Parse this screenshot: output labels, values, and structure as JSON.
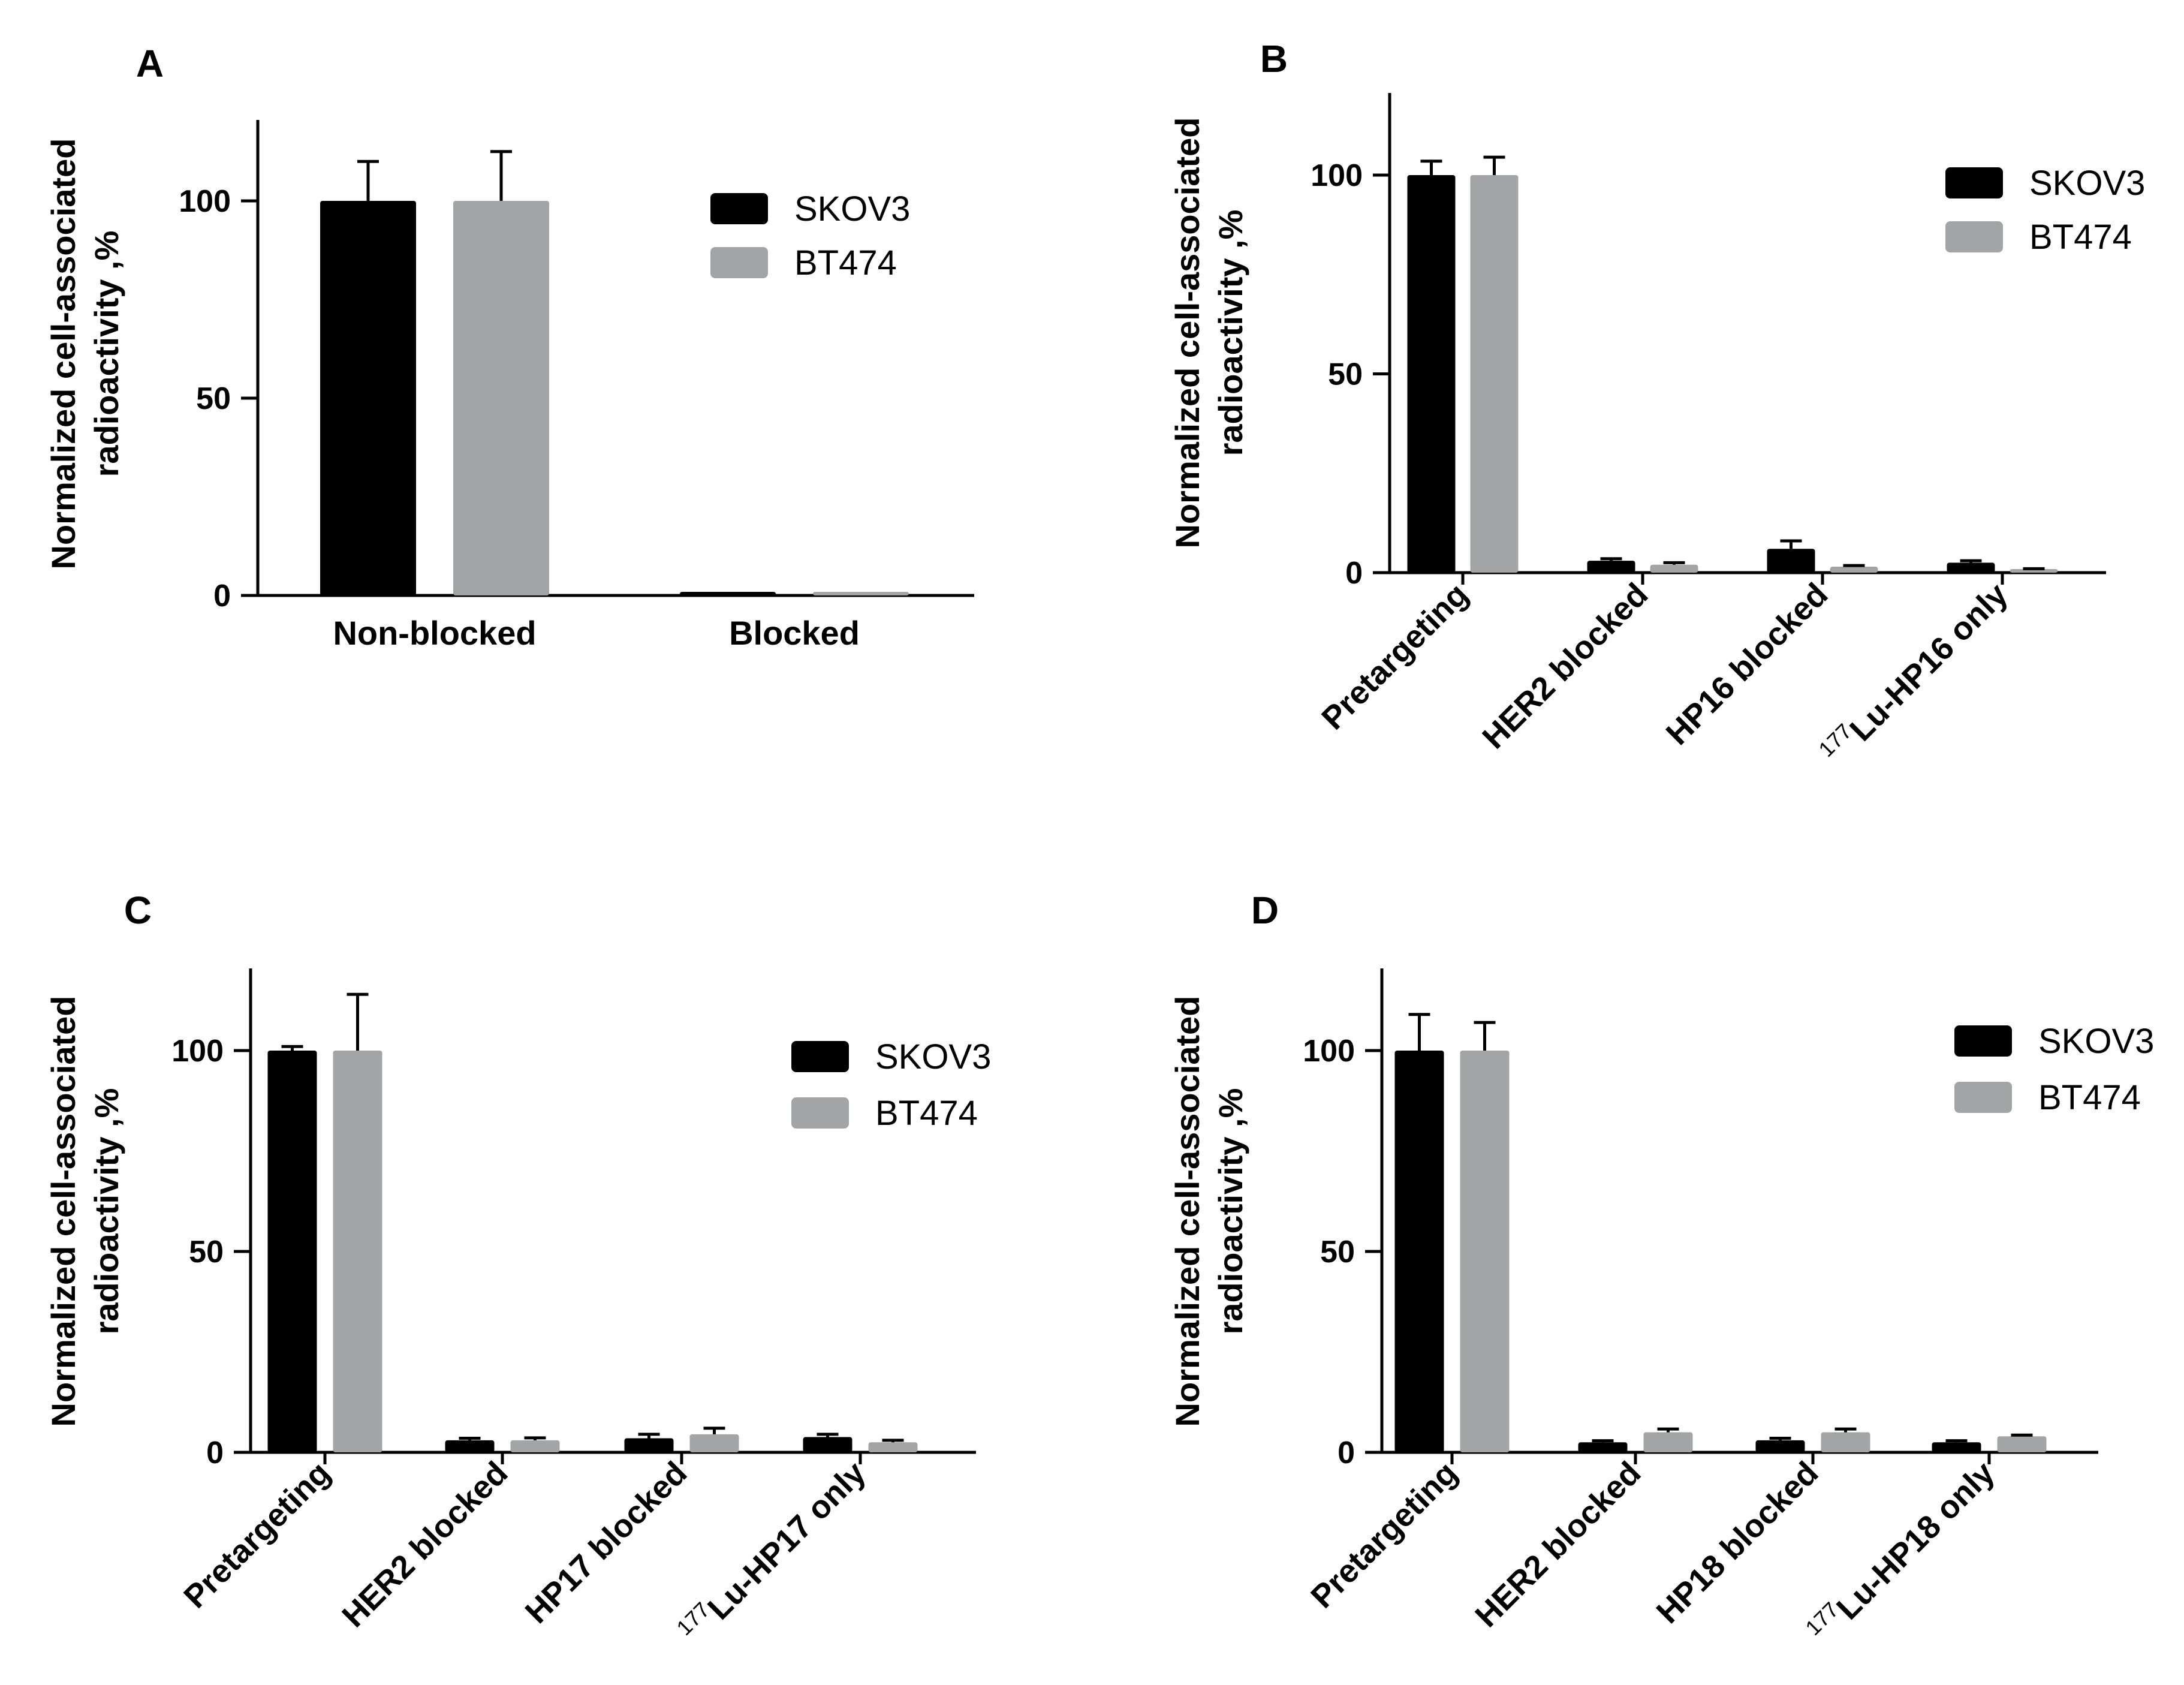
{
  "figure": {
    "series_names": [
      "SKOV3",
      "BT474"
    ],
    "series_colors": [
      "#000000",
      "#a3a4a6"
    ]
  },
  "chart_data": [
    {
      "type": "bar",
      "panel_label": "A",
      "ylabel": [
        "Normalized cell-associated",
        "radioactivity ,%"
      ],
      "xlabel": "",
      "ylim": [
        0,
        120
      ],
      "yticks": [
        "0",
        "50",
        "100"
      ],
      "categories": [
        {
          "text": "Non-blocked"
        },
        {
          "text": "Blocked"
        }
      ],
      "legend": "top-right",
      "series": [
        {
          "name": "SKOV3",
          "values": [
            100,
            0.5
          ],
          "errors": [
            10,
            0
          ]
        },
        {
          "name": "BT474",
          "values": [
            100,
            0.5
          ],
          "errors": [
            12.5,
            0
          ]
        }
      ]
    },
    {
      "type": "bar",
      "panel_label": "B",
      "ylabel": [
        "Normalized cell-associated",
        "radioactivity ,%"
      ],
      "xlabel": "",
      "ylim": [
        0,
        120
      ],
      "yticks": [
        "0",
        "50",
        "100"
      ],
      "categories": [
        {
          "text": "Pretargeting"
        },
        {
          "text": "HER2 blocked"
        },
        {
          "text": "HP16 blocked"
        },
        {
          "sup": "177",
          "text": "Lu-HP16 only"
        }
      ],
      "legend": "top-right",
      "series": [
        {
          "name": "SKOV3",
          "values": [
            100,
            3,
            6,
            2.5
          ],
          "errors": [
            3.5,
            0.5,
            2,
            0.5
          ]
        },
        {
          "name": "BT474",
          "values": [
            100,
            2,
            1.5,
            0.8
          ],
          "errors": [
            4.5,
            0.5,
            0.3,
            0.2
          ]
        }
      ]
    },
    {
      "type": "bar",
      "panel_label": "C",
      "ylabel": [
        "Normalized cell-associated",
        "radioactivity ,%"
      ],
      "xlabel": "",
      "ylim": [
        0,
        120
      ],
      "yticks": [
        "0",
        "50",
        "100"
      ],
      "categories": [
        {
          "text": "Pretargeting"
        },
        {
          "text": "HER2 blocked"
        },
        {
          "text": "HP17 blocked"
        },
        {
          "sup": "177",
          "text": "Lu-HP17 only"
        }
      ],
      "legend": "top-right",
      "series": [
        {
          "name": "SKOV3",
          "values": [
            100,
            3,
            3.5,
            3.8
          ],
          "errors": [
            1,
            0.5,
            1,
            0.7
          ]
        },
        {
          "name": "BT474",
          "values": [
            100,
            3,
            4.5,
            2.5
          ],
          "errors": [
            14,
            0.6,
            1.5,
            0.5
          ]
        }
      ]
    },
    {
      "type": "bar",
      "panel_label": "D",
      "ylabel": [
        "Normalized cell-associated",
        "radioactivity ,%"
      ],
      "xlabel": "",
      "ylim": [
        0,
        120
      ],
      "yticks": [
        "0",
        "50",
        "100"
      ],
      "categories": [
        {
          "text": "Pretargeting"
        },
        {
          "text": "HER2 blocked"
        },
        {
          "text": "HP18 blocked"
        },
        {
          "sup": "177",
          "text": "Lu-HP18 only"
        }
      ],
      "legend": "top-right",
      "series": [
        {
          "name": "SKOV3",
          "values": [
            100,
            2.5,
            3,
            2.5
          ],
          "errors": [
            9,
            0.4,
            0.5,
            0.4
          ]
        },
        {
          "name": "BT474",
          "values": [
            100,
            5,
            5,
            4
          ],
          "errors": [
            7,
            0.8,
            0.8,
            0.3
          ]
        }
      ]
    }
  ]
}
